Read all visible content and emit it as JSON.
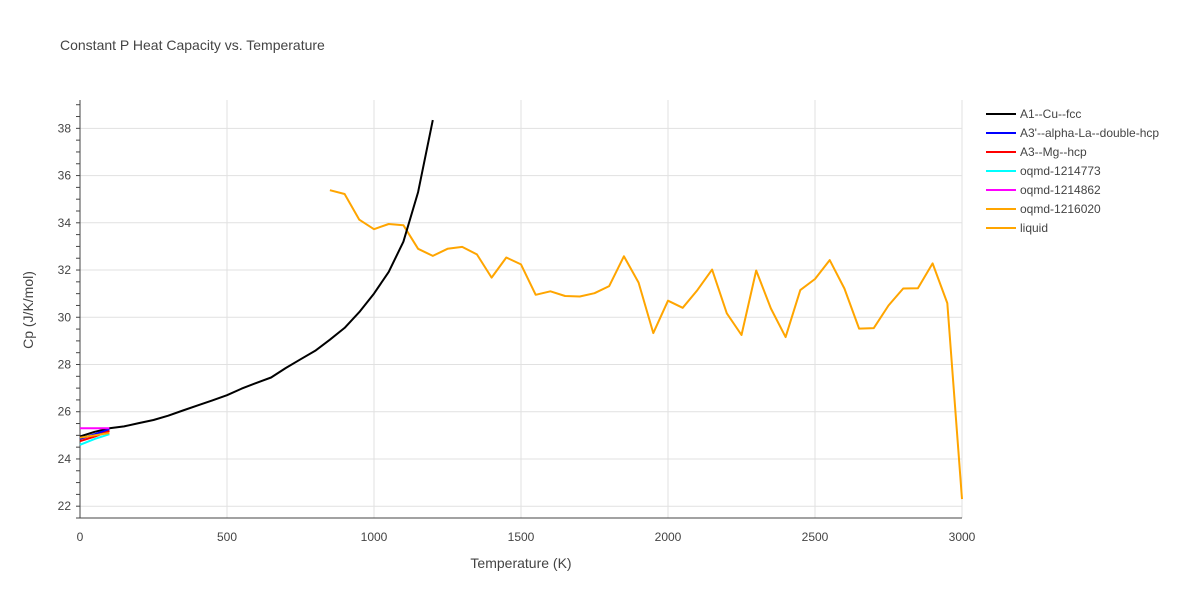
{
  "chart_data": {
    "type": "line",
    "title": "Constant P Heat Capacity vs. Temperature",
    "xlabel": "Temperature (K)",
    "ylabel": "Cp (J/K/mol)",
    "xlim": [
      0,
      3000
    ],
    "ylim": [
      21.5,
      39.2
    ],
    "xticks": [
      0,
      500,
      1000,
      1500,
      2000,
      2500,
      3000
    ],
    "yticks": [
      22,
      24,
      26,
      28,
      30,
      32,
      34,
      36,
      38
    ],
    "grid": true,
    "legend_position": "right",
    "series": [
      {
        "name": "A1--Cu--fcc",
        "color": "#000000",
        "x": [
          0,
          50,
          100,
          150,
          200,
          250,
          300,
          350,
          400,
          450,
          500,
          550,
          600,
          650,
          700,
          750,
          800,
          850,
          900,
          950,
          1000,
          1050,
          1100,
          1150,
          1200
        ],
        "y": [
          24.95,
          25.15,
          25.3,
          25.38,
          25.52,
          25.65,
          25.83,
          26.05,
          26.27,
          26.48,
          26.7,
          26.98,
          27.22,
          27.45,
          27.85,
          28.22,
          28.58,
          29.05,
          29.55,
          30.22,
          31.0,
          31.92,
          33.2,
          35.3,
          38.35
        ]
      },
      {
        "name": "A3'--alpha-La--double-hcp",
        "color": "#0000ff",
        "x": [
          0,
          50,
          100
        ],
        "y": [
          24.85,
          25.05,
          25.25
        ]
      },
      {
        "name": "A3--Mg--hcp",
        "color": "#ff0000",
        "x": [
          0,
          50,
          100
        ],
        "y": [
          24.75,
          24.95,
          25.18
        ]
      },
      {
        "name": "oqmd-1214773",
        "color": "#00ffff",
        "x": [
          0,
          50,
          100
        ],
        "y": [
          24.6,
          24.85,
          25.05
        ]
      },
      {
        "name": "oqmd-1214862",
        "color": "#ff00ff",
        "x": [
          0,
          50,
          100
        ],
        "y": [
          25.3,
          25.3,
          25.3
        ]
      },
      {
        "name": "oqmd-1216020",
        "color": "#ffa500",
        "x": [
          0,
          50,
          100
        ],
        "y": [
          24.9,
          25.0,
          25.1
        ]
      },
      {
        "name": "liquid",
        "color": "#ffa500",
        "x": [
          850,
          900,
          950,
          1000,
          1050,
          1100,
          1150,
          1200,
          1250,
          1300,
          1350,
          1400,
          1450,
          1500,
          1550,
          1600,
          1650,
          1700,
          1750,
          1800,
          1850,
          1900,
          1950,
          2000,
          2050,
          2100,
          2150,
          2200,
          2250,
          2300,
          2350,
          2400,
          2450,
          2500,
          2550,
          2600,
          2650,
          2700,
          2750,
          2800,
          2850,
          2900,
          2950,
          3000
        ],
        "y": [
          35.38,
          35.22,
          34.13,
          33.73,
          33.95,
          33.9,
          32.9,
          32.6,
          32.9,
          32.98,
          32.66,
          31.68,
          32.53,
          32.24,
          30.95,
          31.1,
          30.9,
          30.88,
          31.02,
          31.32,
          32.58,
          31.47,
          29.33,
          30.7,
          30.4,
          31.15,
          32.02,
          30.17,
          29.25,
          31.98,
          30.37,
          29.16,
          31.15,
          31.62,
          32.42,
          31.22,
          29.52,
          29.54,
          30.5,
          31.22,
          31.23,
          32.28,
          30.6,
          22.3
        ]
      }
    ]
  }
}
